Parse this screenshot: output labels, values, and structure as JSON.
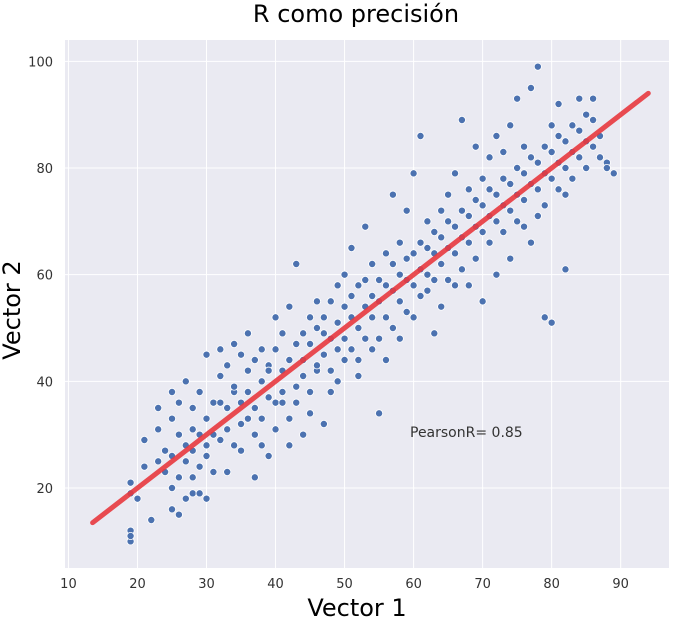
{
  "chart_data": {
    "type": "scatter",
    "title": "R como precisión",
    "xlabel": "Vector 1",
    "ylabel": "Vector 2",
    "xlim": [
      9.5,
      97
    ],
    "ylim": [
      5,
      104
    ],
    "xticks": [
      10,
      20,
      30,
      40,
      50,
      60,
      70,
      80,
      90
    ],
    "yticks": [
      20,
      40,
      60,
      80,
      100
    ],
    "grid": true,
    "annotation": "PearsonR= 0.85",
    "point_color": "#4c72b0",
    "line_color": "#e8393f",
    "background": "#eaeaf2",
    "fit_line": {
      "x": [
        13.5,
        94
      ],
      "y": [
        13.5,
        94
      ]
    },
    "points": [
      [
        19,
        12
      ],
      [
        19,
        10
      ],
      [
        19,
        11
      ],
      [
        19,
        19
      ],
      [
        20,
        18
      ],
      [
        19,
        21
      ],
      [
        21,
        24
      ],
      [
        21,
        29
      ],
      [
        22,
        14
      ],
      [
        23,
        25
      ],
      [
        23,
        31
      ],
      [
        23,
        35
      ],
      [
        24,
        27
      ],
      [
        24,
        23
      ],
      [
        25,
        20
      ],
      [
        25,
        26
      ],
      [
        25,
        16
      ],
      [
        25,
        33
      ],
      [
        25,
        38
      ],
      [
        26,
        22
      ],
      [
        26,
        30
      ],
      [
        26,
        15
      ],
      [
        26,
        36
      ],
      [
        27,
        25
      ],
      [
        27,
        28
      ],
      [
        27,
        18
      ],
      [
        27,
        40
      ],
      [
        28,
        31
      ],
      [
        28,
        22
      ],
      [
        28,
        27
      ],
      [
        28,
        35
      ],
      [
        28,
        19
      ],
      [
        29,
        24
      ],
      [
        29,
        30
      ],
      [
        29,
        38
      ],
      [
        29,
        19
      ],
      [
        30,
        28
      ],
      [
        30,
        33
      ],
      [
        30,
        26
      ],
      [
        30,
        45
      ],
      [
        30,
        18
      ],
      [
        31,
        36
      ],
      [
        31,
        23
      ],
      [
        31,
        30
      ],
      [
        32,
        29
      ],
      [
        32,
        36
      ],
      [
        32,
        41
      ],
      [
        32,
        46
      ],
      [
        33,
        23
      ],
      [
        33,
        31
      ],
      [
        33,
        35
      ],
      [
        33,
        43
      ],
      [
        34,
        28
      ],
      [
        34,
        38
      ],
      [
        34,
        47
      ],
      [
        34,
        39
      ],
      [
        35,
        32
      ],
      [
        35,
        36
      ],
      [
        35,
        45
      ],
      [
        35,
        27
      ],
      [
        36,
        42
      ],
      [
        36,
        33
      ],
      [
        36,
        38
      ],
      [
        36,
        49
      ],
      [
        37,
        30
      ],
      [
        37,
        22
      ],
      [
        37,
        35
      ],
      [
        37,
        44
      ],
      [
        38,
        40
      ],
      [
        38,
        33
      ],
      [
        38,
        28
      ],
      [
        38,
        46
      ],
      [
        39,
        37
      ],
      [
        39,
        43
      ],
      [
        39,
        26
      ],
      [
        39,
        42
      ],
      [
        40,
        31
      ],
      [
        40,
        46
      ],
      [
        40,
        36
      ],
      [
        40,
        52
      ],
      [
        41,
        36
      ],
      [
        41,
        42
      ],
      [
        41,
        49
      ],
      [
        41,
        38
      ],
      [
        42,
        33
      ],
      [
        42,
        44
      ],
      [
        42,
        54
      ],
      [
        42,
        28
      ],
      [
        43,
        39
      ],
      [
        43,
        47
      ],
      [
        43,
        36
      ],
      [
        43,
        62
      ],
      [
        44,
        44
      ],
      [
        44,
        49
      ],
      [
        44,
        30
      ],
      [
        44,
        41
      ],
      [
        45,
        47
      ],
      [
        45,
        52
      ],
      [
        45,
        38
      ],
      [
        45,
        34
      ],
      [
        46,
        42
      ],
      [
        46,
        50
      ],
      [
        46,
        55
      ],
      [
        46,
        43
      ],
      [
        47,
        45
      ],
      [
        47,
        49
      ],
      [
        47,
        32
      ],
      [
        47,
        52
      ],
      [
        48,
        42
      ],
      [
        48,
        55
      ],
      [
        48,
        48
      ],
      [
        48,
        38
      ],
      [
        49,
        46
      ],
      [
        49,
        51
      ],
      [
        49,
        40
      ],
      [
        49,
        58
      ],
      [
        50,
        48
      ],
      [
        50,
        54
      ],
      [
        50,
        44
      ],
      [
        50,
        60
      ],
      [
        51,
        52
      ],
      [
        51,
        46
      ],
      [
        51,
        56
      ],
      [
        51,
        65
      ],
      [
        52,
        50
      ],
      [
        52,
        44
      ],
      [
        52,
        58
      ],
      [
        52,
        41
      ],
      [
        53,
        54
      ],
      [
        53,
        59
      ],
      [
        53,
        48
      ],
      [
        53,
        69
      ],
      [
        54,
        52
      ],
      [
        54,
        56
      ],
      [
        54,
        46
      ],
      [
        54,
        62
      ],
      [
        55,
        55
      ],
      [
        55,
        59
      ],
      [
        55,
        34
      ],
      [
        55,
        48
      ],
      [
        56,
        52
      ],
      [
        56,
        58
      ],
      [
        56,
        64
      ],
      [
        56,
        44
      ],
      [
        57,
        57
      ],
      [
        57,
        62
      ],
      [
        57,
        50
      ],
      [
        57,
        75
      ],
      [
        58,
        55
      ],
      [
        58,
        60
      ],
      [
        58,
        66
      ],
      [
        58,
        48
      ],
      [
        59,
        59
      ],
      [
        59,
        63
      ],
      [
        59,
        53
      ],
      [
        59,
        72
      ],
      [
        60,
        58
      ],
      [
        60,
        64
      ],
      [
        60,
        52
      ],
      [
        60,
        79
      ],
      [
        61,
        61
      ],
      [
        61,
        66
      ],
      [
        61,
        56
      ],
      [
        61,
        86
      ],
      [
        62,
        60
      ],
      [
        62,
        65
      ],
      [
        62,
        57
      ],
      [
        62,
        70
      ],
      [
        63,
        64
      ],
      [
        63,
        68
      ],
      [
        63,
        49
      ],
      [
        63,
        59
      ],
      [
        64,
        62
      ],
      [
        64,
        67
      ],
      [
        64,
        72
      ],
      [
        64,
        54
      ],
      [
        65,
        65
      ],
      [
        65,
        70
      ],
      [
        65,
        59
      ],
      [
        65,
        75
      ],
      [
        66,
        64
      ],
      [
        66,
        69
      ],
      [
        66,
        58
      ],
      [
        66,
        79
      ],
      [
        67,
        67
      ],
      [
        67,
        72
      ],
      [
        67,
        61
      ],
      [
        67,
        89
      ],
      [
        68,
        66
      ],
      [
        68,
        71
      ],
      [
        68,
        76
      ],
      [
        68,
        58
      ],
      [
        69,
        69
      ],
      [
        69,
        74
      ],
      [
        69,
        63
      ],
      [
        69,
        84
      ],
      [
        70,
        68
      ],
      [
        70,
        73
      ],
      [
        70,
        55
      ],
      [
        70,
        78
      ],
      [
        71,
        71
      ],
      [
        71,
        76
      ],
      [
        71,
        66
      ],
      [
        71,
        82
      ],
      [
        72,
        70
      ],
      [
        72,
        75
      ],
      [
        72,
        60
      ],
      [
        72,
        86
      ],
      [
        73,
        73
      ],
      [
        73,
        78
      ],
      [
        73,
        68
      ],
      [
        73,
        83
      ],
      [
        74,
        72
      ],
      [
        74,
        77
      ],
      [
        74,
        63
      ],
      [
        74,
        88
      ],
      [
        75,
        75
      ],
      [
        75,
        80
      ],
      [
        75,
        70
      ],
      [
        75,
        93
      ],
      [
        76,
        74
      ],
      [
        76,
        79
      ],
      [
        76,
        69
      ],
      [
        76,
        84
      ],
      [
        77,
        77
      ],
      [
        77,
        82
      ],
      [
        77,
        66
      ],
      [
        77,
        95
      ],
      [
        78,
        76
      ],
      [
        78,
        81
      ],
      [
        78,
        71
      ],
      [
        78,
        99
      ],
      [
        79,
        79
      ],
      [
        79,
        84
      ],
      [
        79,
        73
      ],
      [
        79,
        52
      ],
      [
        80,
        78
      ],
      [
        80,
        83
      ],
      [
        80,
        88
      ],
      [
        80,
        51
      ],
      [
        81,
        81
      ],
      [
        81,
        86
      ],
      [
        81,
        76
      ],
      [
        81,
        92
      ],
      [
        82,
        80
      ],
      [
        82,
        85
      ],
      [
        82,
        61
      ],
      [
        82,
        75
      ],
      [
        83,
        83
      ],
      [
        83,
        88
      ],
      [
        83,
        78
      ],
      [
        84,
        82
      ],
      [
        84,
        87
      ],
      [
        84,
        93
      ],
      [
        85,
        85
      ],
      [
        85,
        80
      ],
      [
        85,
        90
      ],
      [
        86,
        84
      ],
      [
        86,
        89
      ],
      [
        86,
        93
      ],
      [
        87,
        86
      ],
      [
        87,
        82
      ],
      [
        88,
        81
      ],
      [
        88,
        80
      ],
      [
        89,
        79
      ]
    ]
  }
}
